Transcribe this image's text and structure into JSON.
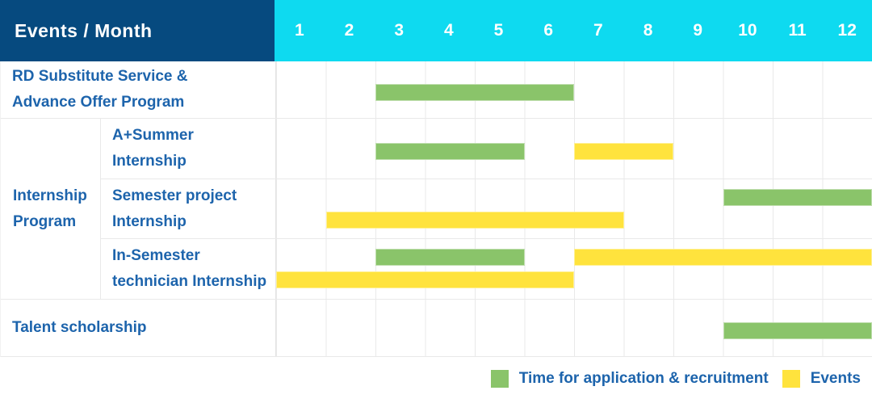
{
  "header": {
    "title": "Events / Month",
    "months": [
      "1",
      "2",
      "3",
      "4",
      "5",
      "6",
      "7",
      "8",
      "9",
      "10",
      "11",
      "12"
    ]
  },
  "colors": {
    "header_bg": "#064a7f",
    "months_bg": "#0edaf0",
    "header_text": "#ffffff",
    "label_text": "#1d64ac",
    "application_green": "#8ac46a",
    "event_yellow": "#ffe33d",
    "grid_line": "#e9e9e9"
  },
  "chart_data": {
    "type": "bar",
    "subtype": "gantt",
    "title": "Events / Month",
    "x_unit": "month",
    "x_ticks": [
      1,
      2,
      3,
      4,
      5,
      6,
      7,
      8,
      9,
      10,
      11,
      12
    ],
    "group_label_lines": [
      "Internship",
      "Program"
    ],
    "rows": [
      {
        "group": "",
        "label": "RD Substitute Service & Advance Offer Program",
        "label_lines": [
          "RD Substitute Service &",
          "Advance Offer Program"
        ],
        "bars": [
          {
            "kind": "application",
            "start_month": 3,
            "end_month": 6,
            "line": "single"
          }
        ]
      },
      {
        "group": "Internship Program",
        "label": "A+Summer Internship",
        "label_lines": [
          "A+Summer",
          "Internship"
        ],
        "bars": [
          {
            "kind": "application",
            "start_month": 3,
            "end_month": 5,
            "line": "single"
          },
          {
            "kind": "event",
            "start_month": 7,
            "end_month": 8,
            "line": "single"
          }
        ]
      },
      {
        "group": "Internship Program",
        "label": "Semester project Internship",
        "label_lines": [
          "Semester project",
          "Internship"
        ],
        "bars": [
          {
            "kind": "application",
            "start_month": 10,
            "end_month": 12,
            "line": "top"
          },
          {
            "kind": "event",
            "start_month": 2,
            "end_month": 7,
            "line": "bottom"
          }
        ]
      },
      {
        "group": "Internship Program",
        "label": "In-Semester technician Internship",
        "label_lines": [
          "In-Semester",
          "technician Internship"
        ],
        "bars": [
          {
            "kind": "application",
            "start_month": 3,
            "end_month": 5,
            "line": "top"
          },
          {
            "kind": "event",
            "start_month": 7,
            "end_month": 12,
            "line": "top"
          },
          {
            "kind": "event",
            "start_month": 1,
            "end_month": 6,
            "line": "bottom"
          }
        ]
      },
      {
        "group": "",
        "label": "Talent scholarship",
        "label_lines": [
          "Talent scholarship"
        ],
        "bars": [
          {
            "kind": "application",
            "start_month": 10,
            "end_month": 12,
            "line": "single"
          }
        ]
      }
    ],
    "legend": [
      {
        "kind": "application",
        "label": "Time for application & recruitment"
      },
      {
        "kind": "event",
        "label": "Events"
      }
    ]
  }
}
